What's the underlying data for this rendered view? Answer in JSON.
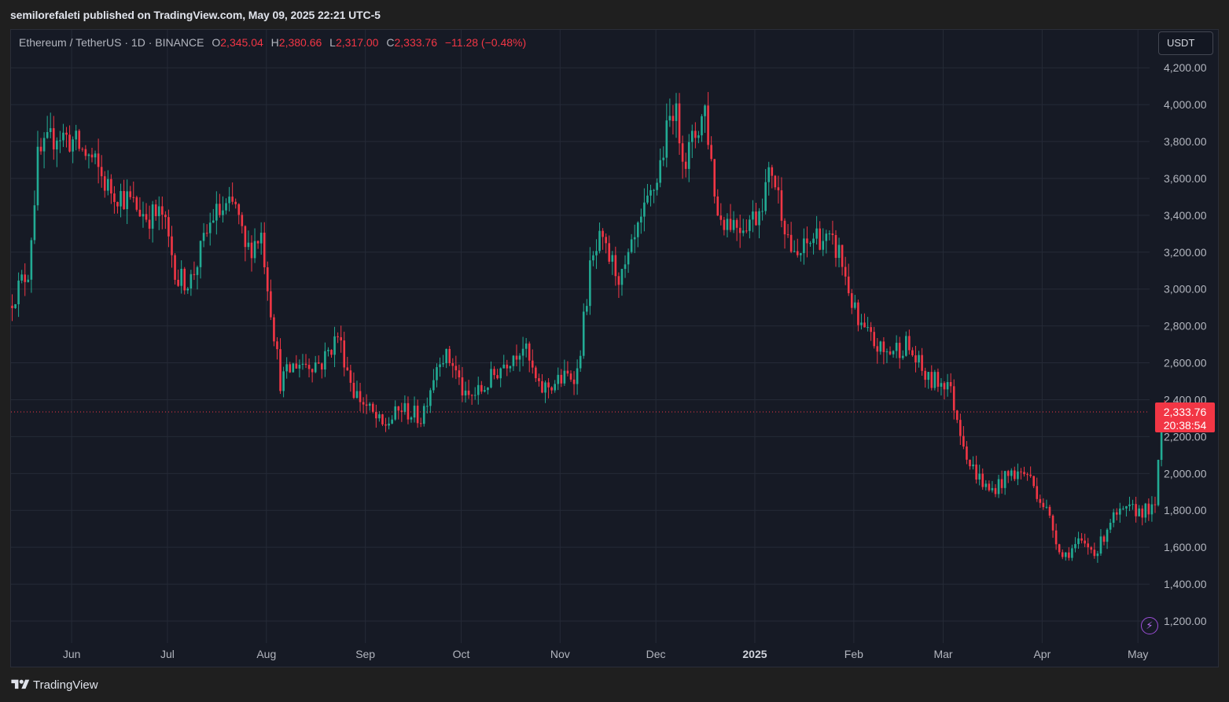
{
  "header": {
    "published_line": "semilorefaleti published on TradingView.com, May 09, 2025 22:21 UTC-5"
  },
  "legend": {
    "symbol_line": "Ethereum / TetherUS · 1D · BINANCE",
    "o_label": "O",
    "o_value": "2,345.04",
    "h_label": "H",
    "h_value": "2,380.66",
    "l_label": "L",
    "l_value": "2,317.00",
    "c_label": "C",
    "c_value": "2,333.76",
    "change": "−11.28 (−0.48%)"
  },
  "currency_button": "USDT",
  "price_badge": {
    "price": "2,333.76",
    "countdown": "20:38:54"
  },
  "footer": {
    "brand": "TradingView"
  },
  "colors": {
    "up": "#22ab94",
    "down": "#f23645",
    "background": "#161a25",
    "grid": "#252a37",
    "axis_text": "#b2b5be",
    "accent_bolt": "#9c4ed8"
  },
  "icons": [
    "tradingview-logo-icon",
    "bolt-icon"
  ],
  "chart_data": {
    "type": "candlestick",
    "title": "",
    "interval": "1D",
    "exchange": "BINANCE",
    "current_price": 2333.76,
    "ylim": [
      1100,
      4300
    ],
    "y_ticks": [
      "1,200.00",
      "1,400.00",
      "1,600.00",
      "1,800.00",
      "2,000.00",
      "2,200.00",
      "2,400.00",
      "2,600.00",
      "2,800.00",
      "3,000.00",
      "3,200.00",
      "3,400.00",
      "3,600.00",
      "3,800.00",
      "4,000.00",
      "4,200.00"
    ],
    "y_tick_values": [
      1200,
      1400,
      1600,
      1800,
      2000,
      2200,
      2400,
      2600,
      2800,
      3000,
      3200,
      3400,
      3600,
      3800,
      4000,
      4200
    ],
    "x_ticks": [
      {
        "label": "Jun",
        "date": "2024-06-01",
        "bold": false
      },
      {
        "label": "Jul",
        "date": "2024-07-01",
        "bold": false
      },
      {
        "label": "Aug",
        "date": "2024-08-01",
        "bold": false
      },
      {
        "label": "Sep",
        "date": "2024-09-01",
        "bold": false
      },
      {
        "label": "Oct",
        "date": "2024-10-01",
        "bold": false
      },
      {
        "label": "Nov",
        "date": "2024-11-01",
        "bold": false
      },
      {
        "label": "Dec",
        "date": "2024-12-01",
        "bold": false
      },
      {
        "label": "2025",
        "date": "2025-01-01",
        "bold": true
      },
      {
        "label": "Feb",
        "date": "2025-02-01",
        "bold": false
      },
      {
        "label": "Mar",
        "date": "2025-03-01",
        "bold": false
      },
      {
        "label": "Apr",
        "date": "2025-04-01",
        "bold": false
      },
      {
        "label": "May",
        "date": "2025-05-01",
        "bold": false
      }
    ],
    "grid": true,
    "date_range": [
      "2024-05-13",
      "2025-05-09"
    ],
    "closes_approx": [
      [
        "2024-05-13",
        2950
      ],
      [
        "2024-05-18",
        3100
      ],
      [
        "2024-05-21",
        3700
      ],
      [
        "2024-05-27",
        3850
      ],
      [
        "2024-06-01",
        3800
      ],
      [
        "2024-06-07",
        3700
      ],
      [
        "2024-06-12",
        3550
      ],
      [
        "2024-06-17",
        3500
      ],
      [
        "2024-06-24",
        3400
      ],
      [
        "2024-06-29",
        3400
      ],
      [
        "2024-07-04",
        3050
      ],
      [
        "2024-07-08",
        3050
      ],
      [
        "2024-07-15",
        3400
      ],
      [
        "2024-07-22",
        3450
      ],
      [
        "2024-07-25",
        3200
      ],
      [
        "2024-07-30",
        3300
      ],
      [
        "2024-08-05",
        2500
      ],
      [
        "2024-08-10",
        2600
      ],
      [
        "2024-08-18",
        2600
      ],
      [
        "2024-08-23",
        2750
      ],
      [
        "2024-08-28",
        2450
      ],
      [
        "2024-09-06",
        2250
      ],
      [
        "2024-09-12",
        2350
      ],
      [
        "2024-09-18",
        2300
      ],
      [
        "2024-09-24",
        2650
      ],
      [
        "2024-09-28",
        2600
      ],
      [
        "2024-10-02",
        2400
      ],
      [
        "2024-10-07",
        2450
      ],
      [
        "2024-10-14",
        2600
      ],
      [
        "2024-10-20",
        2700
      ],
      [
        "2024-10-25",
        2450
      ],
      [
        "2024-10-31",
        2500
      ],
      [
        "2024-11-06",
        2550
      ],
      [
        "2024-11-10",
        3100
      ],
      [
        "2024-11-13",
        3250
      ],
      [
        "2024-11-20",
        3050
      ],
      [
        "2024-11-26",
        3350
      ],
      [
        "2024-12-01",
        3600
      ],
      [
        "2024-12-06",
        4000
      ],
      [
        "2024-12-10",
        3700
      ],
      [
        "2024-12-16",
        3980
      ],
      [
        "2024-12-20",
        3400
      ],
      [
        "2024-12-27",
        3350
      ],
      [
        "2025-01-01",
        3400
      ],
      [
        "2025-01-06",
        3650
      ],
      [
        "2025-01-13",
        3150
      ],
      [
        "2025-01-20",
        3300
      ],
      [
        "2025-01-27",
        3200
      ],
      [
        "2025-02-02",
        2800
      ],
      [
        "2025-02-10",
        2650
      ],
      [
        "2025-02-17",
        2700
      ],
      [
        "2025-02-24",
        2500
      ],
      [
        "2025-03-02",
        2500
      ],
      [
        "2025-03-09",
        2050
      ],
      [
        "2025-03-15",
        1900
      ],
      [
        "2025-03-22",
        2000
      ],
      [
        "2025-03-27",
        2000
      ],
      [
        "2025-04-02",
        1800
      ],
      [
        "2025-04-07",
        1550
      ],
      [
        "2025-04-12",
        1620
      ],
      [
        "2025-04-18",
        1580
      ],
      [
        "2025-04-22",
        1750
      ],
      [
        "2025-04-28",
        1800
      ],
      [
        "2025-05-06",
        1800
      ],
      [
        "2025-05-08",
        2350
      ],
      [
        "2025-05-09",
        2333.76
      ]
    ]
  }
}
